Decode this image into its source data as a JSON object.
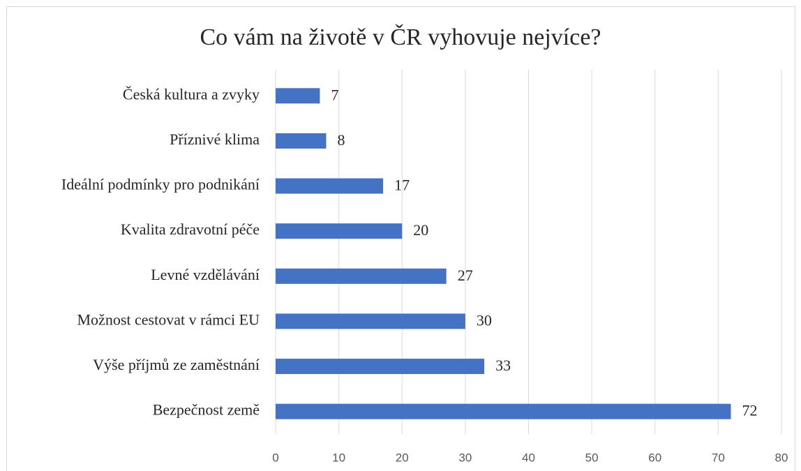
{
  "chart_data": {
    "type": "bar",
    "orientation": "horizontal",
    "title": "Co vám na životě v ČR vyhovuje nejvíce?",
    "categories": [
      "Česká kultura a zvyky",
      "Příznivé klima",
      "Ideální podmínky pro podnikání",
      "Kvalita zdravotní péče",
      "Levné vzdělávání",
      "Možnost cestovat v rámci EU",
      "Výše příjmů ze zaměstnání",
      "Bezpečnost země"
    ],
    "values": [
      7,
      8,
      17,
      20,
      27,
      30,
      33,
      72
    ],
    "color": "#4472c4",
    "xlim": [
      0,
      80
    ],
    "xticks": [
      0,
      10,
      20,
      30,
      40,
      50,
      60,
      70,
      80
    ],
    "grid": true
  }
}
